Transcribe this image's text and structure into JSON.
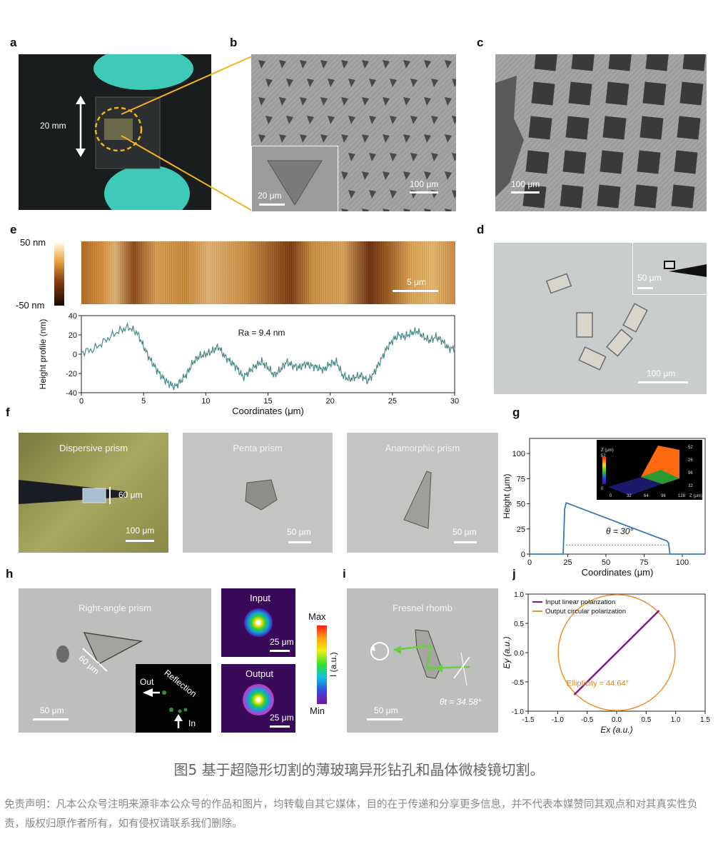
{
  "panel_labels": {
    "a": "a",
    "b": "b",
    "c": "c",
    "d": "d",
    "e": "e",
    "f": "f",
    "g": "g",
    "h": "h",
    "i": "i",
    "j": "j"
  },
  "panel_a": {
    "dimension": "20 mm",
    "colors": {
      "glove": "#3fc9b8",
      "background": "#1a1d1d",
      "circle": "#f0b41c"
    }
  },
  "panel_b": {
    "scale_main": "100 μm",
    "scale_inset": "20 μm"
  },
  "panel_c": {
    "scale": "100 μm"
  },
  "panel_d": {
    "scale_main": "100 μm",
    "scale_inset": "50 μm"
  },
  "panel_e": {
    "colorbar_max": "50 nm",
    "colorbar_min": "-50 nm",
    "scale": "5 μm"
  },
  "panel_f": {
    "dispersive": {
      "title": "Dispersive prism",
      "size": "60 μm",
      "scale": "100 μm"
    },
    "penta": {
      "title": "Penta prism",
      "scale": "50 μm"
    },
    "anamorphic": {
      "title": "Anamorphic prism",
      "scale": "50 μm"
    }
  },
  "panel_h": {
    "title": "Right-angle prism",
    "size": "60 μm",
    "scale": "50 μm",
    "inset_out": "Out",
    "inset_reflection": "Reflection",
    "inset_in": "In",
    "input_label": "Input",
    "output_label": "Output",
    "beam_scale": "25 μm",
    "colorbar_max": "Max",
    "colorbar_min": "Min",
    "colorbar_label": "I (a.u.)"
  },
  "panel_i": {
    "title": "Fresnel rhomb",
    "scale": "50 μm",
    "angle": "θt = 34.58°"
  },
  "chart_data": [
    {
      "id": "e",
      "type": "line",
      "annotation": "Ra = 9.4 nm",
      "xlabel": "Coordinates (μm)",
      "ylabel": "Height profile (nm)",
      "xlim": [
        0,
        30
      ],
      "ylim": [
        -40,
        40
      ],
      "xticks": [
        0,
        5,
        10,
        15,
        20,
        25,
        30
      ],
      "yticks": [
        -40,
        -20,
        0,
        20,
        40
      ],
      "x": [
        0,
        1,
        2,
        3,
        3.8,
        4.5,
        5,
        5.5,
        6,
        6.5,
        7,
        7.5,
        8,
        8.5,
        9,
        9.5,
        10,
        10.5,
        11,
        11.5,
        12,
        12.5,
        13,
        13.5,
        14,
        14.5,
        15,
        15.5,
        16,
        16.5,
        17,
        17.5,
        18,
        18.5,
        19,
        19.5,
        20,
        20.5,
        21,
        21.5,
        22,
        22.5,
        23,
        23.5,
        24,
        24.5,
        25,
        25.5,
        26,
        26.5,
        27,
        27.5,
        28,
        28.5,
        29,
        29.5,
        30
      ],
      "y": [
        2,
        5,
        15,
        24,
        28,
        22,
        8,
        -5,
        -15,
        -24,
        -30,
        -34,
        -28,
        -20,
        -8,
        -2,
        0,
        3,
        8,
        -2,
        -8,
        -14,
        -24,
        -18,
        -12,
        -8,
        -14,
        -22,
        -16,
        -8,
        -12,
        -14,
        -10,
        -12,
        -14,
        -16,
        -10,
        -8,
        -22,
        -26,
        -24,
        -22,
        -28,
        -20,
        -8,
        5,
        14,
        20,
        18,
        22,
        24,
        18,
        14,
        18,
        14,
        6,
        6
      ],
      "series_color": "#4b8a8a"
    },
    {
      "id": "g",
      "type": "line",
      "xlabel": "Coordinates (μm)",
      "ylabel": "Height (μm)",
      "xlim": [
        0,
        115
      ],
      "ylim": [
        0,
        115
      ],
      "xticks": [
        0,
        25,
        50,
        75,
        100
      ],
      "yticks": [
        0,
        25,
        50,
        75,
        100
      ],
      "x": [
        0,
        22,
        23,
        24,
        90,
        91,
        92,
        115
      ],
      "y": [
        0,
        0,
        45,
        51,
        13,
        11,
        0,
        0
      ],
      "annotation": "θ = 30°",
      "series_color": "#3a78b5",
      "inset": {
        "zlabel": "Z (μm)",
        "ticks_top": [
          "52",
          "26"
        ],
        "ticks_mid": [
          "96",
          "32"
        ],
        "ticks_bottom": [
          "0",
          "32",
          "64",
          "96",
          "128"
        ],
        "cb_top": "52",
        "cb_bottom": "0"
      }
    },
    {
      "id": "j",
      "type": "line",
      "xlabel": "Ex (a.u.)",
      "ylabel": "Ey (a.u.)",
      "xlim": [
        -1.5,
        1.5
      ],
      "ylim": [
        -1.0,
        1.0
      ],
      "xticks": [
        -1.5,
        -1.0,
        -0.5,
        0.0,
        0.5,
        1.0,
        1.5
      ],
      "yticks": [
        -1.0,
        -0.5,
        0.0,
        0.5,
        1.0
      ],
      "series": [
        {
          "name": "Input linear polarization",
          "color": "#7a1c8c",
          "x": [
            -0.72,
            0.72
          ],
          "y": [
            -0.72,
            0.72
          ]
        },
        {
          "name": "Output circular polarization",
          "color": "#f0902a",
          "radius": 0.99
        }
      ],
      "annotation": "Ellipticity = 44.64°"
    }
  ],
  "caption": "图5 基于超隐形切割的薄玻璃异形钻孔和晶体微棱镜切割。",
  "disclaimer": "免责声明：凡本公众号注明来源非本公众号的作品和图片，均转载自其它媒体，目的在于传递和分享更多信息，并不代表本媒赞同其观点和对其真实性负责，版权归原作者所有，如有侵权请联系我们删除。"
}
